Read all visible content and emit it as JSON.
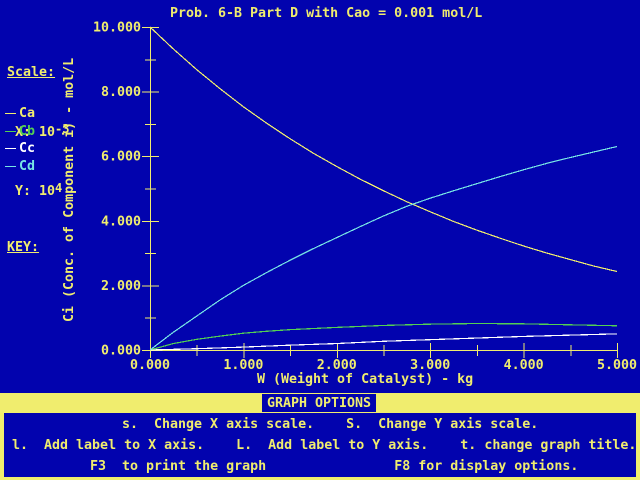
{
  "sidebar": {
    "scale_title": "Scale:",
    "scale_x_label": "X:",
    "scale_x_base": "10",
    "scale_x_exp": "-3",
    "scale_y_label": "Y:",
    "scale_y_base": "10",
    "scale_y_exp": "4",
    "key_title": "KEY:"
  },
  "menu": {
    "title": "GRAPH OPTIONS",
    "lines": [
      "s.  Change X axis scale.    S.  Change Y axis scale.",
      "l.  Add label to X axis.    L.  Add label to Y axis.    t. change graph title.",
      "F3  to print the graph                F8 for display options."
    ]
  },
  "chart_data": {
    "type": "line",
    "title": "Prob. 6-B Part D with Cao = 0.001 mol/L",
    "xlabel": "W (Weight of Catalyst) - kg",
    "ylabel": "Ci (Conc. of Component i) - mol/L",
    "x_scale_factor": "10^-3",
    "y_scale_factor": "10^4",
    "xlim": [
      0,
      5
    ],
    "ylim": [
      0,
      10
    ],
    "grid": false,
    "legend_position": "top-left-outside",
    "x_tick_values": [
      0,
      1,
      2,
      3,
      4,
      5
    ],
    "x_tick_labels": [
      "0.000",
      "1.000",
      "2.000",
      "3.000",
      "4.000",
      "5.000"
    ],
    "x_minor_step": 0.5,
    "y_tick_values": [
      0,
      2,
      4,
      6,
      8,
      10
    ],
    "y_tick_labels": [
      "0.000",
      "2.000",
      "4.000",
      "6.000",
      "8.000",
      "10.000"
    ],
    "y_minor_step": 1,
    "axis_color": "#f0ed6e",
    "series": [
      {
        "name": "Ca",
        "color": "#f0ed6e",
        "x": [
          0,
          0.25,
          0.5,
          0.75,
          1,
          1.25,
          1.5,
          1.75,
          2,
          2.25,
          2.5,
          2.75,
          3,
          3.25,
          3.5,
          3.75,
          4,
          4.25,
          4.5,
          4.75,
          5
        ],
        "y": [
          10.0,
          9.32,
          8.68,
          8.09,
          7.53,
          7.02,
          6.54,
          6.09,
          5.68,
          5.29,
          4.93,
          4.59,
          4.28,
          3.98,
          3.71,
          3.46,
          3.22,
          3.0,
          2.8,
          2.6,
          2.43
        ]
      },
      {
        "name": "Cb",
        "color": "#53d053",
        "x": [
          0,
          0.25,
          0.5,
          0.75,
          1,
          1.25,
          1.5,
          2,
          2.5,
          3,
          3.5,
          4,
          4.5,
          5
        ],
        "y": [
          0,
          0.2,
          0.33,
          0.43,
          0.52,
          0.58,
          0.63,
          0.7,
          0.76,
          0.8,
          0.82,
          0.81,
          0.78,
          0.75
        ]
      },
      {
        "name": "Cc",
        "color": "#ffffff",
        "x": [
          0,
          0.5,
          1,
          1.5,
          2,
          2.5,
          3,
          3.5,
          4,
          4.5,
          5
        ],
        "y": [
          0,
          0.04,
          0.09,
          0.15,
          0.2,
          0.27,
          0.32,
          0.37,
          0.42,
          0.46,
          0.5
        ]
      },
      {
        "name": "Cd",
        "color": "#77e5e5",
        "x": [
          0,
          0.25,
          0.5,
          0.75,
          1,
          1.25,
          1.5,
          1.75,
          2,
          2.25,
          2.5,
          2.75,
          3,
          3.25,
          3.5,
          3.75,
          4,
          4.25,
          4.5,
          4.75,
          5
        ],
        "y": [
          0,
          0.55,
          1.05,
          1.55,
          2.0,
          2.4,
          2.78,
          3.14,
          3.48,
          3.82,
          4.15,
          4.45,
          4.7,
          4.93,
          5.15,
          5.37,
          5.58,
          5.78,
          5.96,
          6.13,
          6.3
        ]
      }
    ]
  }
}
